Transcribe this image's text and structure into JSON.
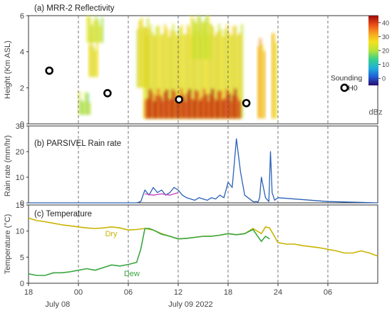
{
  "chart_data": [
    {
      "type": "heatmap",
      "title": "(a) MRR-2 Reflectivity",
      "ylabel": "Height (Km ASL)",
      "ylim": [
        0,
        6
      ],
      "yticks": [
        0,
        2,
        4,
        6
      ],
      "colorbar": {
        "label": "dBz",
        "ticks": [
          0,
          10,
          20,
          30,
          40
        ],
        "range": [
          -5,
          45
        ],
        "colors": [
          "#2a0a6e",
          "#1f5fd6",
          "#20b0d8",
          "#39d08c",
          "#b6e33a",
          "#f4e21e",
          "#f7a020",
          "#e84a16",
          "#9c0a0a"
        ]
      },
      "x_hours": {
        "start": -6,
        "end": 36
      },
      "precip_regions": [
        {
          "x0": 1.2,
          "x1": 2.4,
          "y0": 2.6,
          "y1": 4.4,
          "level": 0.6
        },
        {
          "x0": 1.0,
          "x1": 3.0,
          "y0": 4.5,
          "y1": 5.8,
          "level": 0.55
        },
        {
          "x0": 0.0,
          "x1": 1.5,
          "y0": 0.5,
          "y1": 1.5,
          "level": 0.5
        },
        {
          "x0": 7.8,
          "x1": 19.8,
          "y0": 0.3,
          "y1": 5.2,
          "level": 0.6
        },
        {
          "x0": 8.0,
          "x1": 19.5,
          "y0": 0.3,
          "y1": 1.6,
          "level": 0.92
        },
        {
          "x0": 7.0,
          "x1": 8.5,
          "y0": 2.0,
          "y1": 5.6,
          "level": 0.6
        },
        {
          "x0": 21.5,
          "x1": 22.5,
          "y0": 0.3,
          "y1": 4.4,
          "level": 0.7
        },
        {
          "x0": 23.2,
          "x1": 23.9,
          "y0": 0.3,
          "y1": 4.8,
          "level": 0.65
        },
        {
          "x0": 13.5,
          "x1": 16.0,
          "y0": 3.6,
          "y1": 5.9,
          "level": 0.55
        }
      ],
      "sounding_points": [
        {
          "time_h": -3.5,
          "height_km": 2.95
        },
        {
          "time_h": 3.5,
          "height_km": 1.7
        },
        {
          "time_h": 12.1,
          "height_km": 1.35
        },
        {
          "time_h": 20.2,
          "height_km": 1.15
        },
        {
          "time_h": 32.0,
          "height_km": 2.0
        }
      ],
      "annotation": "Sounding\nH0"
    },
    {
      "type": "line",
      "title": "(b) PARSIVEL Rain rate",
      "ylabel": "Rain rate (mm/hr)",
      "ylim": [
        0,
        30
      ],
      "yticks": [
        0,
        10,
        20,
        30
      ],
      "series": [
        {
          "color": "#2a62b8",
          "x": [
            -6,
            7.0,
            7.5,
            8.0,
            8.5,
            9.0,
            9.5,
            10.0,
            10.5,
            11.0,
            11.5,
            12.0,
            12.5,
            13.0,
            13.5,
            14.0,
            14.5,
            15.0,
            15.5,
            16.0,
            16.5,
            17.0,
            17.5,
            18.0,
            18.5,
            19.0,
            19.5,
            20.0,
            21.0,
            21.2,
            21.4,
            21.6,
            21.8,
            22.0,
            22.5,
            22.9,
            23.1,
            23.3,
            23.6,
            24.0,
            30.0,
            36.0
          ],
          "y": [
            0,
            0,
            0.5,
            5,
            3,
            6,
            4,
            5,
            3,
            4,
            6,
            5,
            3,
            2,
            1.5,
            1,
            2,
            1.5,
            1,
            2,
            1.5,
            3,
            2,
            8,
            6,
            25,
            12,
            3,
            0.5,
            0.4,
            0.5,
            0.3,
            2,
            10,
            2,
            0.5,
            20,
            4,
            1,
            2,
            0.5,
            0
          ]
        },
        {
          "color": "#c83cc0",
          "x": [
            8.0,
            9.0,
            10.0,
            11.0,
            12.0
          ],
          "y": [
            3.5,
            3,
            3.5,
            3,
            4
          ]
        }
      ]
    },
    {
      "type": "line",
      "title": "(c) Temperature",
      "ylabel": "Temperature (°C)",
      "ylim": [
        0,
        15
      ],
      "yticks": [
        0,
        5,
        10,
        15
      ],
      "series": [
        {
          "name": "Dry",
          "color": "#c8b400",
          "x": [
            -6,
            -5,
            -4,
            -3,
            -2,
            -1,
            0,
            1,
            2,
            3,
            4,
            5,
            6,
            7,
            8,
            9,
            10,
            11,
            12,
            13,
            14,
            15,
            16,
            17,
            18,
            19,
            20,
            21,
            22,
            22.5,
            23,
            24,
            25,
            26,
            27,
            28,
            29,
            30,
            31,
            32,
            33,
            34,
            35,
            36
          ],
          "y": [
            12.5,
            12,
            11.8,
            11.5,
            11.2,
            11.0,
            10.8,
            10.6,
            10.5,
            10.6,
            10.8,
            10.6,
            10.2,
            10.3,
            10.5,
            10.2,
            9.5,
            9.0,
            8.5,
            8.6,
            8.8,
            9.0,
            9.0,
            9.2,
            9.5,
            9.3,
            9.5,
            10.5,
            9.5,
            10.8,
            10.6,
            7.8,
            7.5,
            7.5,
            7.2,
            7.0,
            6.8,
            6.5,
            6.2,
            5.8,
            5.8,
            6.2,
            5.8,
            5.2
          ]
        },
        {
          "name": "Dew",
          "color": "#3aa640",
          "x": [
            -6,
            -5,
            -4,
            -3,
            -2,
            -1,
            0,
            1,
            2,
            3,
            4,
            5,
            6,
            6.5,
            7.0,
            7.2,
            7.5,
            8.0,
            8.5,
            9.0,
            10.0,
            11.0,
            12.0,
            13.0,
            14.0,
            15.0,
            16.0,
            17.0,
            18.0,
            19.0,
            20.0,
            21.0,
            22.0,
            22.5,
            23.0
          ],
          "y": [
            1.8,
            1.5,
            1.5,
            2.0,
            2.0,
            2.2,
            2.5,
            2.8,
            2.5,
            3.0,
            3.5,
            3.3,
            3.6,
            3.8,
            4.0,
            5.0,
            6.5,
            10.5,
            10.5,
            10.2,
            9.4,
            9.0,
            8.5,
            8.6,
            8.8,
            9.0,
            9.0,
            9.2,
            9.5,
            9.3,
            9.5,
            10.3,
            8.0,
            9.0,
            8.5
          ]
        }
      ],
      "series_labels": [
        "Dry",
        "Dew"
      ]
    }
  ],
  "x_axis": {
    "ticks": [
      "18",
      "00",
      "06",
      "12",
      "18",
      "24",
      "06"
    ],
    "tick_hours": [
      -6,
      0,
      6,
      12,
      18,
      24,
      30
    ],
    "date_labels": [
      "July 08",
      "July 09 2022"
    ],
    "date_label_hours": [
      -2.5,
      13.5
    ]
  }
}
